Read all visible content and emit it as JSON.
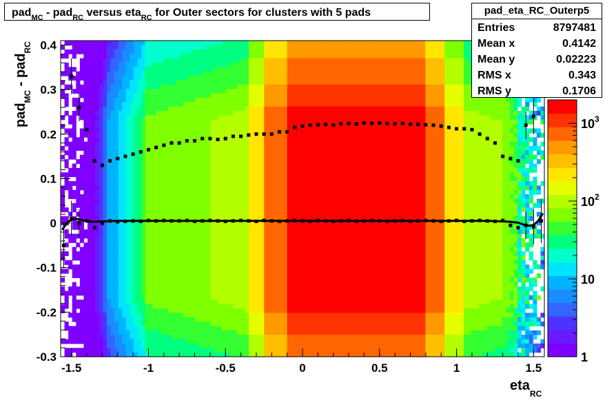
{
  "chart_data": {
    "type": "heatmap",
    "title_parts": [
      "pad",
      "MC",
      " - pad",
      "RC",
      " versus eta",
      "RC",
      " for Outer sectors for clusters with 5 pads"
    ],
    "xlabel_main": "eta",
    "xlabel_sub": "RC",
    "ylabel_parts": [
      "pad",
      "MC",
      " - pad",
      "RC"
    ],
    "xlim": [
      -1.57,
      1.57
    ],
    "ylim": [
      -0.3,
      0.41
    ],
    "x_ticks": [
      -1.5,
      -1,
      -0.5,
      0,
      0.5,
      1,
      1.5
    ],
    "x_tick_labels": [
      "-1.5",
      "-1",
      "-0.5",
      "0",
      "0.5",
      "1",
      "1.5"
    ],
    "y_ticks": [
      -0.3,
      -0.2,
      -0.1,
      0,
      0.1,
      0.2,
      0.3,
      0.4
    ],
    "y_tick_labels": [
      "-0.3",
      "-0.2",
      "-0.1",
      "0",
      "0.1",
      "0.2",
      "0.3",
      "0.4"
    ],
    "z_scale": "log",
    "zlim": [
      1,
      2000
    ],
    "z_tick_labels": [
      {
        "value": 1,
        "base": "1",
        "exp": ""
      },
      {
        "value": 10,
        "base": "10",
        "exp": ""
      },
      {
        "value": 100,
        "base": "10",
        "exp": "2"
      },
      {
        "value": 1000,
        "base": "10",
        "exp": "3"
      }
    ],
    "palette": [
      "#7f00ff",
      "#6a1aff",
      "#4d33ff",
      "#3366ff",
      "#1a8cff",
      "#00b3ff",
      "#00e5ff",
      "#00ffcc",
      "#00ff80",
      "#33ff33",
      "#80ff00",
      "#b3ff00",
      "#e6ff00",
      "#ffe600",
      "#ffbf00",
      "#ff9900",
      "#ff6600",
      "#ff3300",
      "#ff0000"
    ],
    "stats": {
      "name": "pad_eta_RC_Outerp5",
      "rows": [
        {
          "key": "Entries",
          "value": "8797481"
        },
        {
          "key": "Mean x",
          "value": "0.4142"
        },
        {
          "key": "Mean y",
          "value": "0.02223"
        },
        {
          "key": "RMS x",
          "value": "0.343"
        },
        {
          "key": "RMS y",
          "value": "0.1706"
        }
      ]
    },
    "series": [
      {
        "type": "profile_mean",
        "x": [
          -1.55,
          -1.5,
          -1.45,
          -1.4,
          -1.35,
          -1.3,
          -1.25,
          -1.2,
          -1.15,
          -1.1,
          -1.05,
          -1.0,
          -0.95,
          -0.9,
          -0.85,
          -0.8,
          -0.75,
          -0.7,
          -0.65,
          -0.6,
          -0.55,
          -0.5,
          -0.45,
          -0.4,
          -0.35,
          -0.3,
          -0.25,
          -0.2,
          -0.15,
          -0.1,
          -0.05,
          0.0,
          0.05,
          0.1,
          0.15,
          0.2,
          0.25,
          0.3,
          0.35,
          0.4,
          0.45,
          0.5,
          0.55,
          0.6,
          0.65,
          0.7,
          0.75,
          0.8,
          0.85,
          0.9,
          0.95,
          1.0,
          1.05,
          1.1,
          1.15,
          1.2,
          1.25,
          1.3,
          1.35,
          1.4,
          1.45,
          1.5,
          1.55
        ],
        "y": [
          -0.05,
          0.01,
          0.0,
          0.005,
          -0.01,
          0.0,
          0.005,
          0.003,
          0.004,
          0.005,
          0.004,
          0.006,
          0.005,
          0.006,
          0.005,
          0.005,
          0.006,
          0.004,
          0.005,
          0.006,
          0.005,
          0.004,
          0.005,
          0.006,
          0.005,
          0.004,
          0.006,
          0.005,
          0.004,
          0.005,
          0.006,
          0.005,
          0.004,
          0.006,
          0.005,
          0.004,
          0.005,
          0.006,
          0.004,
          0.005,
          0.006,
          0.005,
          0.004,
          0.005,
          0.006,
          0.004,
          0.005,
          0.006,
          0.005,
          0.004,
          0.005,
          0.006,
          0.004,
          0.005,
          0.006,
          0.005,
          0.004,
          0.006,
          -0.005,
          -0.01,
          -0.005,
          -0.008,
          0.005
        ]
      },
      {
        "type": "profile_rms",
        "x": [
          -1.5,
          -1.45,
          -1.4,
          -1.35,
          -1.3,
          -1.25,
          -1.2,
          -1.15,
          -1.1,
          -1.05,
          -1.0,
          -0.95,
          -0.9,
          -0.85,
          -0.8,
          -0.75,
          -0.7,
          -0.65,
          -0.6,
          -0.55,
          -0.5,
          -0.45,
          -0.4,
          -0.35,
          -0.3,
          -0.25,
          -0.2,
          -0.15,
          -0.1,
          -0.05,
          0.0,
          0.05,
          0.1,
          0.15,
          0.2,
          0.25,
          0.3,
          0.35,
          0.4,
          0.45,
          0.5,
          0.55,
          0.6,
          0.65,
          0.7,
          0.75,
          0.8,
          0.85,
          0.9,
          0.95,
          1.0,
          1.05,
          1.1,
          1.15,
          1.2,
          1.25,
          1.3,
          1.35,
          1.4,
          1.45,
          1.5
        ],
        "y": [
          0.33,
          0.26,
          0.21,
          0.14,
          0.13,
          0.14,
          0.145,
          0.15,
          0.155,
          0.16,
          0.165,
          0.17,
          0.175,
          0.18,
          0.18,
          0.185,
          0.185,
          0.19,
          0.19,
          0.188,
          0.19,
          0.195,
          0.195,
          0.198,
          0.2,
          0.2,
          0.2,
          0.205,
          0.205,
          0.215,
          0.218,
          0.22,
          0.221,
          0.222,
          0.22,
          0.223,
          0.224,
          0.223,
          0.225,
          0.224,
          0.225,
          0.224,
          0.223,
          0.224,
          0.222,
          0.222,
          0.221,
          0.22,
          0.218,
          0.215,
          0.212,
          0.212,
          0.21,
          0.2,
          0.19,
          0.18,
          0.15,
          0.145,
          0.14,
          0.22,
          0.24
        ]
      }
    ],
    "fit_curve_x": [
      -1.56,
      -1.53,
      -1.5,
      -1.47,
      -1.44,
      -1.4,
      -1.35,
      -1.3,
      -1.2,
      -1.0,
      -0.5,
      0.0,
      0.5,
      1.0,
      1.2,
      1.3,
      1.35,
      1.4,
      1.44,
      1.47,
      1.5,
      1.53,
      1.56
    ],
    "fit_curve_y": [
      -0.015,
      0.0,
      0.008,
      0.01,
      0.008,
      0.004,
      0.003,
      0.004,
      0.005,
      0.005,
      0.005,
      0.005,
      0.005,
      0.005,
      0.005,
      0.004,
      0.003,
      0.001,
      -0.004,
      -0.006,
      -0.004,
      0.005,
      0.022
    ]
  }
}
